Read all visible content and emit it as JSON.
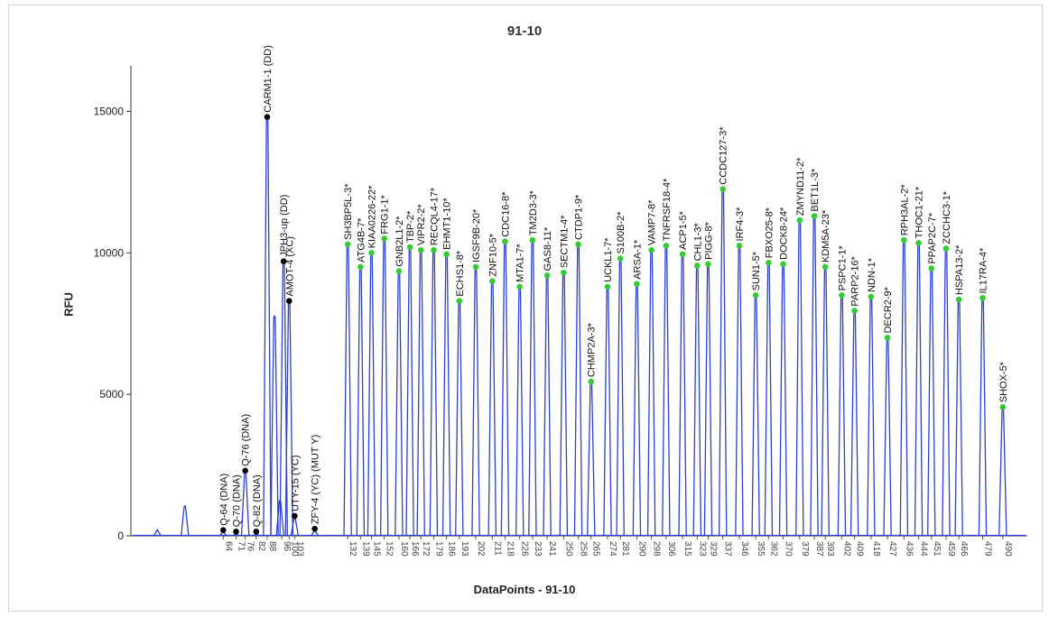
{
  "window": {
    "title": "91-10"
  },
  "chart_data": {
    "type": "line",
    "title": "91-10",
    "xlabel": "DataPoints - 91-10",
    "ylabel": "RFU",
    "ylim": [
      0,
      17500
    ],
    "y_ticks": [
      0,
      5000,
      10000,
      15000
    ],
    "x_ticks": [
      64,
      71,
      76,
      82,
      88,
      96,
      100,
      103,
      132,
      139,
      145,
      152,
      160,
      166,
      172,
      179,
      186,
      193,
      202,
      211,
      218,
      226,
      233,
      241,
      250,
      258,
      265,
      274,
      281,
      290,
      298,
      306,
      315,
      323,
      329,
      337,
      346,
      355,
      362,
      370,
      379,
      387,
      393,
      402,
      409,
      418,
      427,
      436,
      444,
      451,
      459,
      466,
      479,
      490
    ],
    "x_tick_labels": [
      "64",
      "71",
      "76",
      "82",
      "88",
      "96",
      "100",
      "103",
      "132",
      "139",
      "145",
      "152",
      "160",
      "166",
      "172",
      "179",
      "186",
      "193",
      "202",
      "211",
      "218",
      "226",
      "233",
      "241",
      "250",
      "258",
      "265",
      "274",
      "281",
      "290",
      "298",
      "306",
      "315",
      "323",
      "329",
      "337",
      "346",
      "355",
      "362",
      "370",
      "379",
      "387",
      "393",
      "402",
      "409",
      "418",
      "427",
      "436",
      "444",
      "451",
      "459",
      "466",
      "479",
      "490"
    ],
    "grid": false,
    "line_color": "#2b3fd1",
    "control_marker_color": "#000000",
    "probe_marker_color": "#33cc33",
    "control_peaks": [
      {
        "label": "Q-64 (DNA)",
        "x": 64,
        "y": 200
      },
      {
        "label": "Q-70 (DNA)",
        "x": 71,
        "y": 150
      },
      {
        "label": "Q-82 (DNA)",
        "x": 82,
        "y": 150
      },
      {
        "label": "Q-76 (DNA)",
        "x": 76,
        "y": 2300
      },
      {
        "label": "CARM1-1 (DD)",
        "x": 88,
        "y": 14800
      },
      {
        "label": "JPH3-up (DD)",
        "x": 97,
        "y": 9700
      },
      {
        "label": "AMOT-4 (XC)",
        "x": 100,
        "y": 8300
      },
      {
        "label": "UTY-15 (YC)",
        "x": 103,
        "y": 700
      },
      {
        "label": "ZFY-4 (YC) (MUT Y)",
        "x": 114,
        "y": 250
      }
    ],
    "probe_peaks": [
      {
        "label": "SH3BP5L-3*",
        "x": 132,
        "y": 10300
      },
      {
        "label": "ATG4B-7*",
        "x": 139,
        "y": 9500
      },
      {
        "label": "KIAA0226-22*",
        "x": 145,
        "y": 10000
      },
      {
        "label": "FRG1-1*",
        "x": 152,
        "y": 10500
      },
      {
        "label": "GNB2L1-2*",
        "x": 160,
        "y": 9350
      },
      {
        "label": "TBP-2*",
        "x": 166,
        "y": 10200
      },
      {
        "label": "VIPR2-2*",
        "x": 172,
        "y": 10100
      },
      {
        "label": "RECQL4-17*",
        "x": 179,
        "y": 10100
      },
      {
        "label": "EHMT1-10*",
        "x": 186,
        "y": 9950
      },
      {
        "label": "ECHS1-8*",
        "x": 193,
        "y": 8300
      },
      {
        "label": "IGSF9B-20*",
        "x": 202,
        "y": 9500
      },
      {
        "label": "ZNF10-5*",
        "x": 211,
        "y": 9000
      },
      {
        "label": "CDC16-8*",
        "x": 218,
        "y": 10400
      },
      {
        "label": "MTA1-7*",
        "x": 226,
        "y": 8800
      },
      {
        "label": "TM2D3-3*",
        "x": 233,
        "y": 10450
      },
      {
        "label": "GAS8-11*",
        "x": 241,
        "y": 9200
      },
      {
        "label": "SECTM1-4*",
        "x": 250,
        "y": 9300
      },
      {
        "label": "CTDP1-9*",
        "x": 258,
        "y": 10300
      },
      {
        "label": "CHMP2A-3*",
        "x": 265,
        "y": 5450
      },
      {
        "label": "UCKL1-7*",
        "x": 274,
        "y": 8800
      },
      {
        "label": "S100B-2*",
        "x": 281,
        "y": 9800
      },
      {
        "label": "ARSA-1*",
        "x": 290,
        "y": 8900
      },
      {
        "label": "VAMP7-8*",
        "x": 298,
        "y": 10100
      },
      {
        "label": "TNFRSF18-4*",
        "x": 306,
        "y": 10250
      },
      {
        "label": "ACP1-5*",
        "x": 315,
        "y": 9950
      },
      {
        "label": "CHL1-3*",
        "x": 323,
        "y": 9550
      },
      {
        "label": "PIGG-8*",
        "x": 329,
        "y": 9600
      },
      {
        "label": "CCDC127-3*",
        "x": 337,
        "y": 12250
      },
      {
        "label": "IRF4-3*",
        "x": 346,
        "y": 10250
      },
      {
        "label": "SUN1-5*",
        "x": 355,
        "y": 8500
      },
      {
        "label": "FBXO25-8*",
        "x": 362,
        "y": 9650
      },
      {
        "label": "DOCK8-24*",
        "x": 370,
        "y": 9600
      },
      {
        "label": "ZMYND11-2*",
        "x": 379,
        "y": 11150
      },
      {
        "label": "BET1L-3*",
        "x": 387,
        "y": 11300
      },
      {
        "label": "KDM5A-23*",
        "x": 393,
        "y": 9500
      },
      {
        "label": "PSPC1-1*",
        "x": 402,
        "y": 8500
      },
      {
        "label": "PARP2-16*",
        "x": 409,
        "y": 7950
      },
      {
        "label": "NDN-1*",
        "x": 418,
        "y": 8450
      },
      {
        "label": "DECR2-9*",
        "x": 427,
        "y": 7000
      },
      {
        "label": "RPH3AL-2*",
        "x": 436,
        "y": 10450
      },
      {
        "label": "THOC1-21*",
        "x": 444,
        "y": 10350
      },
      {
        "label": "PPAP2C-7*",
        "x": 451,
        "y": 9450
      },
      {
        "label": "ZCCHC3-1*",
        "x": 459,
        "y": 10150
      },
      {
        "label": "HSPA13-2*",
        "x": 466,
        "y": 8350
      },
      {
        "label": "IL17RA-4*",
        "x": 479,
        "y": 8400
      },
      {
        "label": "SHOX-5*",
        "x": 490,
        "y": 4550
      }
    ],
    "unlabeled_peaks": [
      {
        "x": 28,
        "y": 250
      },
      {
        "x": 43,
        "y": 1100
      },
      {
        "x": 92,
        "y": 7800
      },
      {
        "x": 95,
        "y": 1300
      }
    ]
  }
}
